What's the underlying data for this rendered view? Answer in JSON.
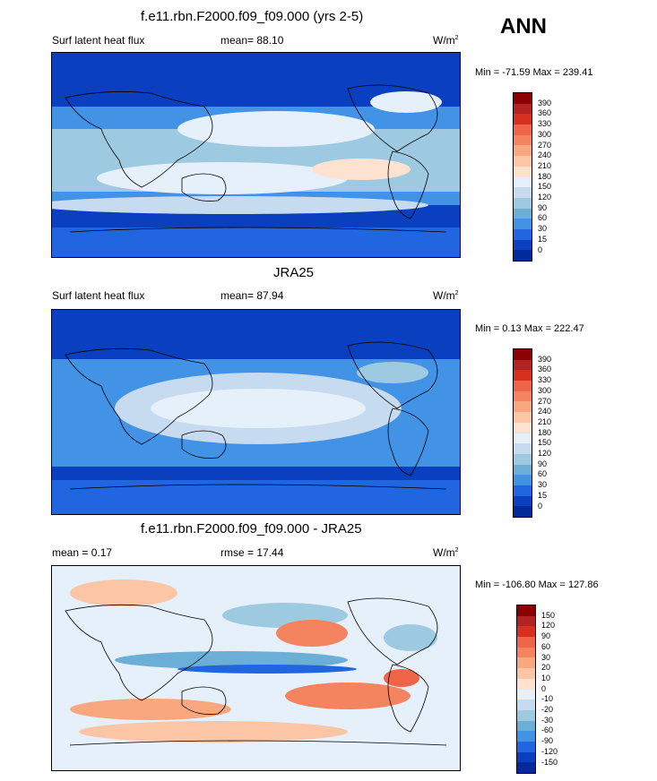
{
  "panels": [
    {
      "title": "f.e11.rbn.F2000.f09_f09.000 (yrs 2-5)",
      "left_label": "Surf latent heat flux",
      "mid_label": "mean=  88.10",
      "units": "W/m",
      "units_sup": "2",
      "minmax": "Min = -71.59 Max = 239.41",
      "scale_labels": [
        "390",
        "360",
        "330",
        "300",
        "270",
        "240",
        "210",
        "180",
        "150",
        "120",
        "90",
        "60",
        "30",
        "15",
        "0"
      ],
      "scale_colors": [
        "#8b0000",
        "#b22222",
        "#d7301f",
        "#ef6548",
        "#f4845f",
        "#f9a77f",
        "#fcc5a5",
        "#fde3cf",
        "#e6f0fa",
        "#c6dbef",
        "#9ecae1",
        "#6baed6",
        "#4292e6",
        "#2166e0",
        "#0a3fc0",
        "#002a9a"
      ]
    },
    {
      "title": "JRA25",
      "left_label": "Surf latent heat flux",
      "mid_label": "mean=  87.94",
      "units": "W/m",
      "units_sup": "2",
      "minmax": "Min =  0.13 Max = 222.47",
      "scale_labels": [
        "390",
        "360",
        "330",
        "300",
        "270",
        "240",
        "210",
        "180",
        "150",
        "120",
        "90",
        "60",
        "30",
        "15",
        "0"
      ],
      "scale_colors": [
        "#8b0000",
        "#b22222",
        "#d7301f",
        "#ef6548",
        "#f4845f",
        "#f9a77f",
        "#fcc5a5",
        "#fde3cf",
        "#e6f0fa",
        "#c6dbef",
        "#9ecae1",
        "#6baed6",
        "#4292e6",
        "#2166e0",
        "#0a3fc0",
        "#002a9a"
      ]
    },
    {
      "title": "f.e11.rbn.F2000.f09_f09.000 - JRA25",
      "left_label": "mean =   0.17",
      "mid_label": "rmse =  17.44",
      "units": "W/m",
      "units_sup": "2",
      "minmax": "Min = -106.80 Max = 127.86",
      "scale_labels": [
        "150",
        "120",
        "90",
        "60",
        "30",
        "20",
        "10",
        "0",
        "-10",
        "-20",
        "-30",
        "-60",
        "-90",
        "-120",
        "-150"
      ],
      "scale_colors": [
        "#8b0000",
        "#b22222",
        "#d7301f",
        "#ef6548",
        "#f4845f",
        "#f9a77f",
        "#fcc5a5",
        "#fde3cf",
        "#e6f0fa",
        "#c6dbef",
        "#9ecae1",
        "#6baed6",
        "#4292e6",
        "#2166e0",
        "#0a3fc0",
        "#002a9a"
      ]
    }
  ],
  "season": "ANN"
}
